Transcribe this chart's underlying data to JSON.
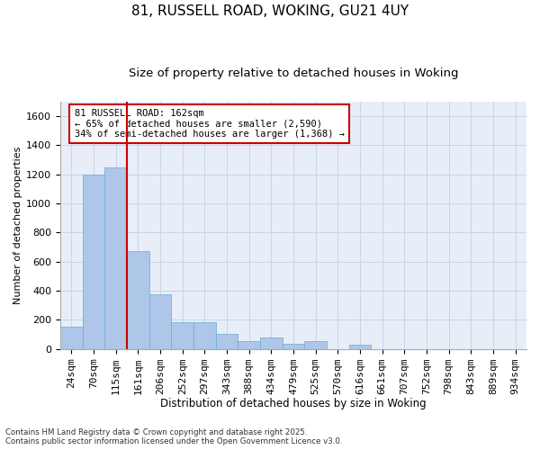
{
  "title": "81, RUSSELL ROAD, WOKING, GU21 4UY",
  "subtitle": "Size of property relative to detached houses in Woking",
  "xlabel": "Distribution of detached houses by size in Woking",
  "ylabel": "Number of detached properties",
  "categories": [
    "24sqm",
    "70sqm",
    "115sqm",
    "161sqm",
    "206sqm",
    "252sqm",
    "297sqm",
    "343sqm",
    "388sqm",
    "434sqm",
    "479sqm",
    "525sqm",
    "570sqm",
    "616sqm",
    "661sqm",
    "707sqm",
    "752sqm",
    "798sqm",
    "843sqm",
    "889sqm",
    "934sqm"
  ],
  "values": [
    155,
    1195,
    1245,
    670,
    375,
    185,
    185,
    100,
    55,
    80,
    35,
    55,
    0,
    30,
    0,
    0,
    0,
    0,
    0,
    0,
    0
  ],
  "bar_color": "#aec6e8",
  "bar_edge_color": "#6aaad4",
  "highlight_line_index": 3,
  "highlight_line_color": "#cc0000",
  "annotation_text": "81 RUSSELL ROAD: 162sqm\n← 65% of detached houses are smaller (2,590)\n34% of semi-detached houses are larger (1,368) →",
  "annotation_box_color": "#cc0000",
  "ylim": [
    0,
    1700
  ],
  "yticks": [
    0,
    200,
    400,
    600,
    800,
    1000,
    1200,
    1400,
    1600
  ],
  "grid_color": "#c8d4e8",
  "background_color": "#e8eef8",
  "footer_text": "Contains HM Land Registry data © Crown copyright and database right 2025.\nContains public sector information licensed under the Open Government Licence v3.0.",
  "title_fontsize": 11,
  "subtitle_fontsize": 9.5,
  "xlabel_fontsize": 8.5,
  "ylabel_fontsize": 8,
  "tick_fontsize": 8,
  "annot_fontsize": 7.5
}
